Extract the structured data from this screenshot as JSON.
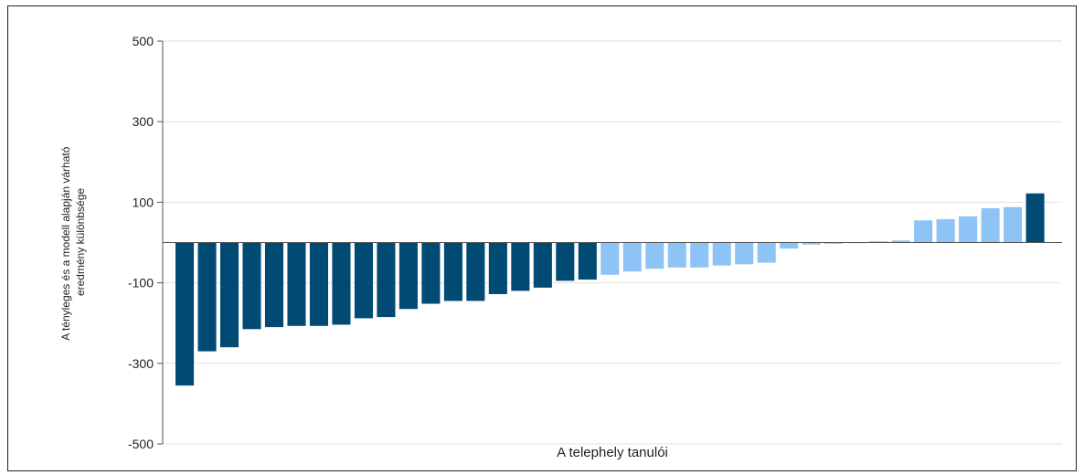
{
  "chart_data": {
    "type": "bar",
    "xlabel": "A telephely tanulói",
    "ylabel_lines": [
      "A tényleges és a modell alapján várható",
      "eredmény különbsége"
    ],
    "ylim": [
      -500,
      500
    ],
    "yticks": [
      500,
      300,
      100,
      -100,
      -300,
      -500
    ],
    "grid": true,
    "colors": {
      "dark": "#004a74",
      "light": "#8ec3f5"
    },
    "bars": [
      {
        "value": -355,
        "color": "dark"
      },
      {
        "value": -270,
        "color": "dark"
      },
      {
        "value": -260,
        "color": "dark"
      },
      {
        "value": -215,
        "color": "dark"
      },
      {
        "value": -210,
        "color": "dark"
      },
      {
        "value": -207,
        "color": "dark"
      },
      {
        "value": -207,
        "color": "dark"
      },
      {
        "value": -204,
        "color": "dark"
      },
      {
        "value": -188,
        "color": "dark"
      },
      {
        "value": -185,
        "color": "dark"
      },
      {
        "value": -165,
        "color": "dark"
      },
      {
        "value": -152,
        "color": "dark"
      },
      {
        "value": -145,
        "color": "dark"
      },
      {
        "value": -145,
        "color": "dark"
      },
      {
        "value": -128,
        "color": "dark"
      },
      {
        "value": -120,
        "color": "dark"
      },
      {
        "value": -112,
        "color": "dark"
      },
      {
        "value": -95,
        "color": "dark"
      },
      {
        "value": -92,
        "color": "dark"
      },
      {
        "value": -80,
        "color": "light"
      },
      {
        "value": -72,
        "color": "light"
      },
      {
        "value": -65,
        "color": "light"
      },
      {
        "value": -62,
        "color": "light"
      },
      {
        "value": -62,
        "color": "light"
      },
      {
        "value": -57,
        "color": "light"
      },
      {
        "value": -54,
        "color": "light"
      },
      {
        "value": -50,
        "color": "light"
      },
      {
        "value": -15,
        "color": "light"
      },
      {
        "value": -5,
        "color": "light"
      },
      {
        "value": -3,
        "color": "light"
      },
      {
        "value": 0,
        "color": "light"
      },
      {
        "value": 3,
        "color": "light"
      },
      {
        "value": 5,
        "color": "light"
      },
      {
        "value": 55,
        "color": "light"
      },
      {
        "value": 58,
        "color": "light"
      },
      {
        "value": 65,
        "color": "light"
      },
      {
        "value": 85,
        "color": "light"
      },
      {
        "value": 88,
        "color": "light"
      },
      {
        "value": 122,
        "color": "dark"
      }
    ]
  }
}
